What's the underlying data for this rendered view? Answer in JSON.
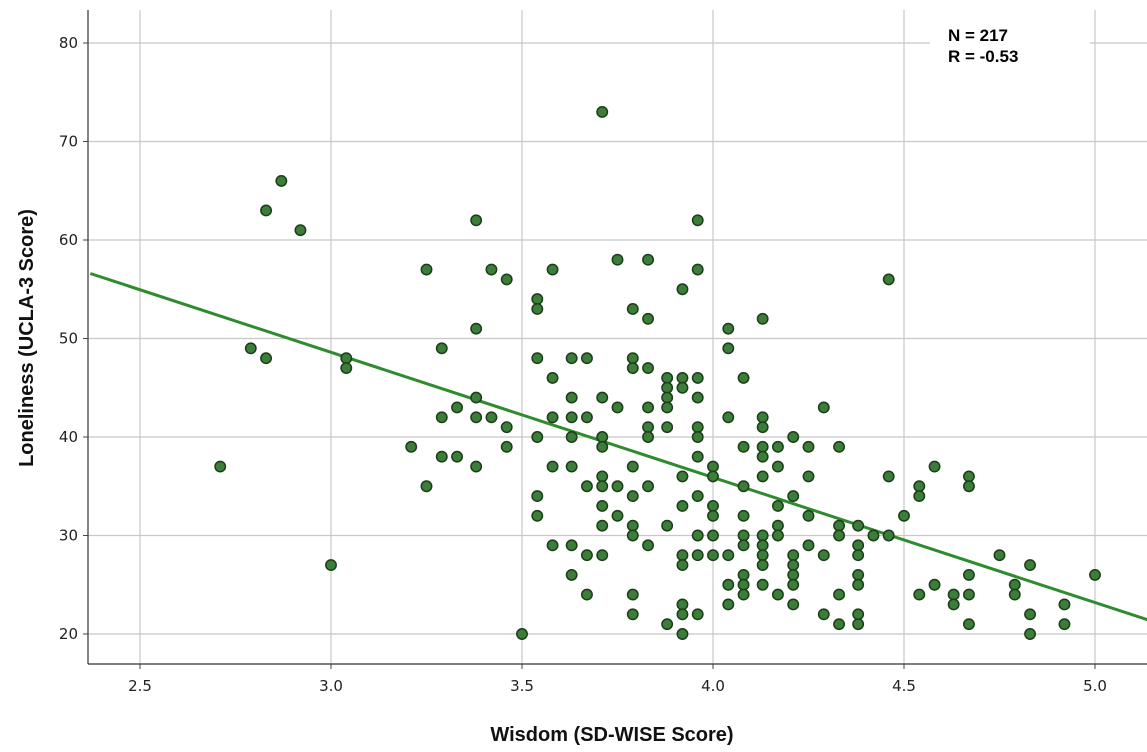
{
  "chart_data": {
    "type": "scatter",
    "xlabel": "Wisdom (SD-WISE Score)",
    "ylabel": "Loneliness (UCLA-3 Score)",
    "xlim": [
      2.37,
      5.22
    ],
    "ylim": [
      17,
      81
    ],
    "x_ticks": [
      "2.5",
      "3.0",
      "3.5",
      "4.0",
      "4.5",
      "5.0"
    ],
    "y_ticks": [
      "20",
      "30",
      "40",
      "50",
      "60",
      "70",
      "80"
    ],
    "grid": true,
    "annotations": [
      "N = 217",
      "R = -0.53"
    ],
    "fit_line": {
      "x": [
        2.37,
        5.22
      ],
      "y": [
        56.6,
        20.4
      ]
    },
    "colors": {
      "point_fill": "#3c7d3a",
      "point_stroke": "#1c3d1a",
      "fit_line": "#2e8b2e",
      "grid": "#c8c8c8"
    },
    "points": [
      [
        2.71,
        37
      ],
      [
        2.79,
        49
      ],
      [
        2.83,
        48
      ],
      [
        2.83,
        63
      ],
      [
        2.87,
        66
      ],
      [
        2.92,
        61
      ],
      [
        3.0,
        27
      ],
      [
        3.04,
        48
      ],
      [
        3.04,
        47
      ],
      [
        3.21,
        39
      ],
      [
        3.25,
        57
      ],
      [
        3.25,
        35
      ],
      [
        3.29,
        49
      ],
      [
        3.29,
        42
      ],
      [
        3.29,
        38
      ],
      [
        3.33,
        43
      ],
      [
        3.33,
        38
      ],
      [
        3.38,
        62
      ],
      [
        3.38,
        51
      ],
      [
        3.38,
        44
      ],
      [
        3.38,
        42
      ],
      [
        3.38,
        37
      ],
      [
        3.42,
        57
      ],
      [
        3.42,
        42
      ],
      [
        3.46,
        56
      ],
      [
        3.46,
        41
      ],
      [
        3.46,
        39
      ],
      [
        3.5,
        20
      ],
      [
        3.54,
        54
      ],
      [
        3.54,
        53
      ],
      [
        3.54,
        48
      ],
      [
        3.54,
        40
      ],
      [
        3.54,
        34
      ],
      [
        3.54,
        32
      ],
      [
        3.58,
        57
      ],
      [
        3.58,
        46
      ],
      [
        3.58,
        42
      ],
      [
        3.58,
        37
      ],
      [
        3.58,
        29
      ],
      [
        3.63,
        48
      ],
      [
        3.63,
        44
      ],
      [
        3.63,
        42
      ],
      [
        3.63,
        40
      ],
      [
        3.63,
        37
      ],
      [
        3.63,
        29
      ],
      [
        3.63,
        26
      ],
      [
        3.67,
        48
      ],
      [
        3.67,
        42
      ],
      [
        3.67,
        35
      ],
      [
        3.67,
        28
      ],
      [
        3.67,
        24
      ],
      [
        3.71,
        73
      ],
      [
        3.71,
        44
      ],
      [
        3.71,
        40
      ],
      [
        3.71,
        39
      ],
      [
        3.71,
        36
      ],
      [
        3.71,
        35
      ],
      [
        3.71,
        33
      ],
      [
        3.71,
        31
      ],
      [
        3.71,
        28
      ],
      [
        3.75,
        58
      ],
      [
        3.75,
        43
      ],
      [
        3.75,
        35
      ],
      [
        3.75,
        32
      ],
      [
        3.79,
        53
      ],
      [
        3.79,
        48
      ],
      [
        3.79,
        47
      ],
      [
        3.79,
        37
      ],
      [
        3.79,
        34
      ],
      [
        3.79,
        31
      ],
      [
        3.79,
        30
      ],
      [
        3.79,
        24
      ],
      [
        3.79,
        22
      ],
      [
        3.83,
        58
      ],
      [
        3.83,
        52
      ],
      [
        3.83,
        47
      ],
      [
        3.83,
        43
      ],
      [
        3.83,
        41
      ],
      [
        3.83,
        40
      ],
      [
        3.83,
        35
      ],
      [
        3.83,
        29
      ],
      [
        3.88,
        46
      ],
      [
        3.88,
        45
      ],
      [
        3.88,
        44
      ],
      [
        3.88,
        43
      ],
      [
        3.88,
        41
      ],
      [
        3.88,
        31
      ],
      [
        3.88,
        21
      ],
      [
        3.92,
        55
      ],
      [
        3.92,
        46
      ],
      [
        3.92,
        45
      ],
      [
        3.92,
        36
      ],
      [
        3.92,
        33
      ],
      [
        3.92,
        28
      ],
      [
        3.92,
        27
      ],
      [
        3.92,
        23
      ],
      [
        3.92,
        22
      ],
      [
        3.92,
        20
      ],
      [
        3.96,
        62
      ],
      [
        3.96,
        57
      ],
      [
        3.96,
        46
      ],
      [
        3.96,
        44
      ],
      [
        3.96,
        41
      ],
      [
        3.96,
        40
      ],
      [
        3.96,
        38
      ],
      [
        3.96,
        34
      ],
      [
        3.96,
        30
      ],
      [
        3.96,
        28
      ],
      [
        3.96,
        22
      ],
      [
        4.0,
        37
      ],
      [
        4.0,
        36
      ],
      [
        4.0,
        33
      ],
      [
        4.0,
        32
      ],
      [
        4.0,
        30
      ],
      [
        4.0,
        28
      ],
      [
        4.04,
        51
      ],
      [
        4.04,
        49
      ],
      [
        4.04,
        42
      ],
      [
        4.04,
        28
      ],
      [
        4.04,
        25
      ],
      [
        4.04,
        23
      ],
      [
        4.08,
        46
      ],
      [
        4.08,
        39
      ],
      [
        4.08,
        35
      ],
      [
        4.08,
        32
      ],
      [
        4.08,
        30
      ],
      [
        4.08,
        29
      ],
      [
        4.08,
        26
      ],
      [
        4.08,
        25
      ],
      [
        4.08,
        24
      ],
      [
        4.13,
        52
      ],
      [
        4.13,
        42
      ],
      [
        4.13,
        41
      ],
      [
        4.13,
        39
      ],
      [
        4.13,
        38
      ],
      [
        4.13,
        36
      ],
      [
        4.13,
        30
      ],
      [
        4.13,
        29
      ],
      [
        4.13,
        28
      ],
      [
        4.13,
        27
      ],
      [
        4.13,
        25
      ],
      [
        4.17,
        39
      ],
      [
        4.17,
        37
      ],
      [
        4.17,
        33
      ],
      [
        4.17,
        31
      ],
      [
        4.17,
        30
      ],
      [
        4.17,
        24
      ],
      [
        4.21,
        40
      ],
      [
        4.21,
        34
      ],
      [
        4.21,
        28
      ],
      [
        4.21,
        27
      ],
      [
        4.21,
        26
      ],
      [
        4.21,
        25
      ],
      [
        4.21,
        23
      ],
      [
        4.25,
        39
      ],
      [
        4.25,
        36
      ],
      [
        4.25,
        32
      ],
      [
        4.25,
        29
      ],
      [
        4.29,
        43
      ],
      [
        4.29,
        28
      ],
      [
        4.29,
        22
      ],
      [
        4.33,
        39
      ],
      [
        4.33,
        31
      ],
      [
        4.33,
        30
      ],
      [
        4.33,
        24
      ],
      [
        4.33,
        21
      ],
      [
        4.38,
        31
      ],
      [
        4.38,
        29
      ],
      [
        4.38,
        28
      ],
      [
        4.38,
        26
      ],
      [
        4.38,
        25
      ],
      [
        4.38,
        22
      ],
      [
        4.38,
        21
      ],
      [
        4.42,
        30
      ],
      [
        4.46,
        56
      ],
      [
        4.46,
        36
      ],
      [
        4.46,
        30
      ],
      [
        4.5,
        32
      ],
      [
        4.54,
        35
      ],
      [
        4.54,
        34
      ],
      [
        4.54,
        24
      ],
      [
        4.58,
        37
      ],
      [
        4.58,
        25
      ],
      [
        4.63,
        24
      ],
      [
        4.63,
        23
      ],
      [
        4.67,
        36
      ],
      [
        4.67,
        35
      ],
      [
        4.67,
        26
      ],
      [
        4.67,
        24
      ],
      [
        4.67,
        21
      ],
      [
        4.75,
        28
      ],
      [
        4.79,
        25
      ],
      [
        4.79,
        24
      ],
      [
        4.83,
        27
      ],
      [
        4.83,
        22
      ],
      [
        4.83,
        20
      ],
      [
        4.92,
        23
      ],
      [
        4.92,
        21
      ],
      [
        5.0,
        26
      ]
    ]
  }
}
